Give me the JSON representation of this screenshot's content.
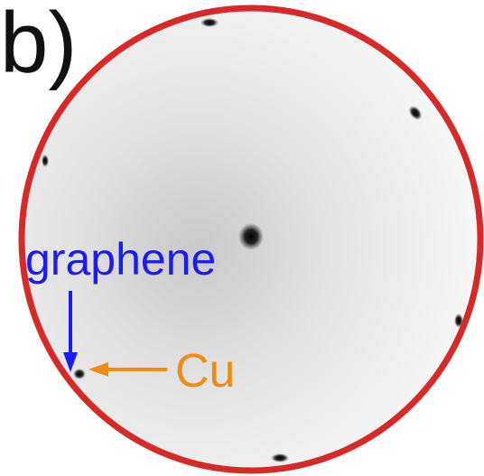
{
  "panel_label": "b)",
  "annotations": [
    {
      "label": "graphene"
    },
    {
      "label": "Cu"
    }
  ]
}
